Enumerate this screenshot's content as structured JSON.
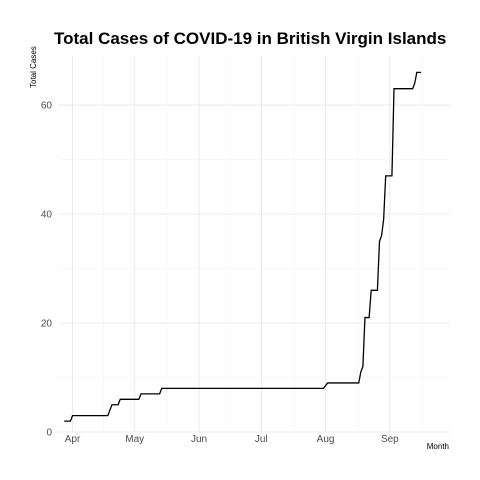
{
  "chart_data": {
    "type": "line",
    "title": "Total Cases of COVID-19 in British Virgin Islands",
    "xlabel": "Month",
    "ylabel": "Total Cases",
    "x_type": "date",
    "xlim": [
      "2020-03-25",
      "2020-09-30"
    ],
    "ylim": [
      0,
      69
    ],
    "x_ticks": [
      {
        "date": "2020-04-01",
        "label": "Apr"
      },
      {
        "date": "2020-05-01",
        "label": "May"
      },
      {
        "date": "2020-06-01",
        "label": "Jun"
      },
      {
        "date": "2020-07-01",
        "label": "Jul"
      },
      {
        "date": "2020-08-01",
        "label": "Aug"
      },
      {
        "date": "2020-09-01",
        "label": "Sep"
      }
    ],
    "y_ticks": [
      0,
      20,
      40,
      60
    ],
    "grid": true,
    "legend": "none",
    "series": [
      {
        "color": "#000000",
        "points": [
          {
            "x": "2020-03-28",
            "y": 2
          },
          {
            "x": "2020-03-31",
            "y": 2
          },
          {
            "x": "2020-04-01",
            "y": 3
          },
          {
            "x": "2020-04-18",
            "y": 3
          },
          {
            "x": "2020-04-19",
            "y": 4
          },
          {
            "x": "2020-04-20",
            "y": 5
          },
          {
            "x": "2020-04-23",
            "y": 5
          },
          {
            "x": "2020-04-24",
            "y": 6
          },
          {
            "x": "2020-05-03",
            "y": 6
          },
          {
            "x": "2020-05-04",
            "y": 7
          },
          {
            "x": "2020-05-13",
            "y": 7
          },
          {
            "x": "2020-05-14",
            "y": 8
          },
          {
            "x": "2020-07-31",
            "y": 8
          },
          {
            "x": "2020-08-02",
            "y": 9
          },
          {
            "x": "2020-08-17",
            "y": 9
          },
          {
            "x": "2020-08-18",
            "y": 11
          },
          {
            "x": "2020-08-19",
            "y": 12
          },
          {
            "x": "2020-08-20",
            "y": 21
          },
          {
            "x": "2020-08-22",
            "y": 21
          },
          {
            "x": "2020-08-23",
            "y": 26
          },
          {
            "x": "2020-08-26",
            "y": 26
          },
          {
            "x": "2020-08-27",
            "y": 35
          },
          {
            "x": "2020-08-28",
            "y": 36
          },
          {
            "x": "2020-08-29",
            "y": 39
          },
          {
            "x": "2020-08-30",
            "y": 47
          },
          {
            "x": "2020-09-02",
            "y": 47
          },
          {
            "x": "2020-09-03",
            "y": 63
          },
          {
            "x": "2020-09-12",
            "y": 63
          },
          {
            "x": "2020-09-13",
            "y": 64
          },
          {
            "x": "2020-09-14",
            "y": 66
          },
          {
            "x": "2020-09-16",
            "y": 66
          }
        ]
      }
    ]
  }
}
